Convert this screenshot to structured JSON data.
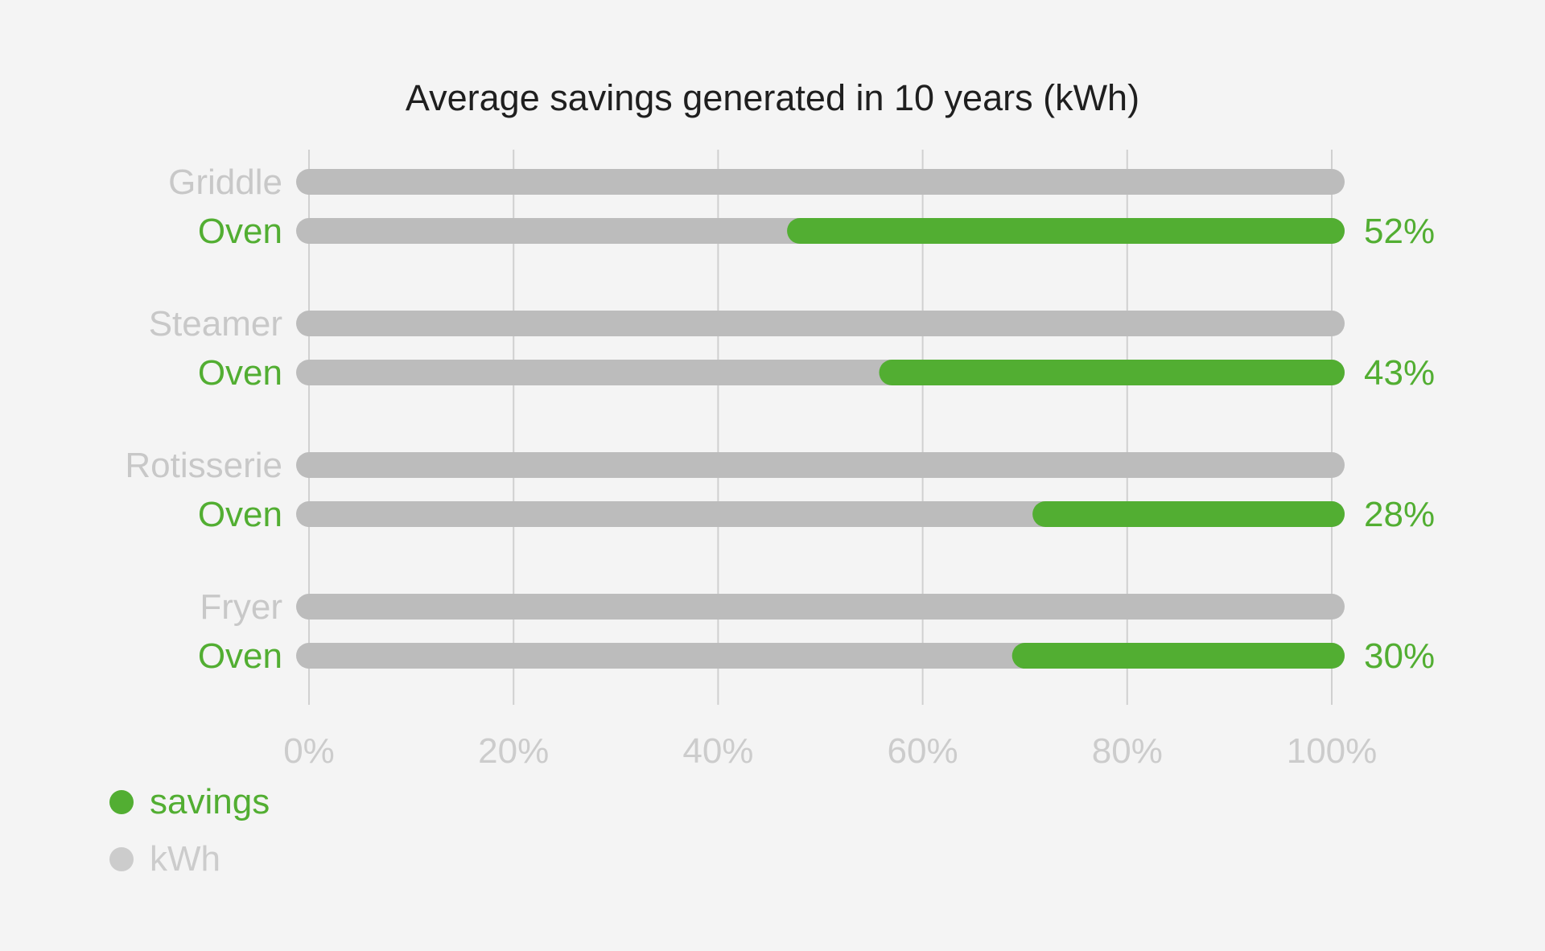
{
  "chart_data": {
    "type": "bar",
    "title": "Average savings generated in 10 years (kWh)",
    "xlabel": "",
    "ylabel": "",
    "xlim": [
      0,
      100
    ],
    "x_ticks": [
      "0%",
      "20%",
      "40%",
      "60%",
      "80%",
      "100%"
    ],
    "grid": true,
    "legend_placement": "bottom-left",
    "colors": {
      "savings": "#52ae32",
      "kWh": "#bcbcbc",
      "category_text": "#c8c8c8",
      "tick_text": "#cccccc",
      "title_text": "#1f1f1f",
      "gridline": "#d0d0d0"
    },
    "groups": [
      {
        "category": "Griddle",
        "category_value": 100,
        "oven_label": "Oven",
        "oven_kwh": 100,
        "savings": 52,
        "savings_label": "52%"
      },
      {
        "category": "Steamer",
        "category_value": 100,
        "oven_label": "Oven",
        "oven_kwh": 100,
        "savings": 43,
        "savings_label": "43%"
      },
      {
        "category": "Rotisserie",
        "category_value": 100,
        "oven_label": "Oven",
        "oven_kwh": 100,
        "savings": 28,
        "savings_label": "28%"
      },
      {
        "category": "Fryer",
        "category_value": 100,
        "oven_label": "Oven",
        "oven_kwh": 100,
        "savings": 30,
        "savings_label": "30%"
      }
    ],
    "legend": [
      {
        "name": "savings",
        "color": "#52ae32"
      },
      {
        "name": "kWh",
        "color": "#cccccc"
      }
    ]
  }
}
